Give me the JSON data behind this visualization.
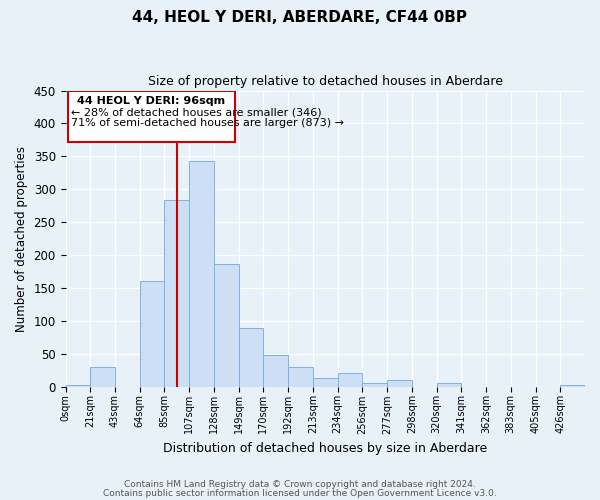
{
  "title": "44, HEOL Y DERI, ABERDARE, CF44 0BP",
  "subtitle": "Size of property relative to detached houses in Aberdare",
  "xlabel": "Distribution of detached houses by size in Aberdare",
  "ylabel": "Number of detached properties",
  "bar_color": "#ccdff5",
  "bar_edge_color": "#7fb3e0",
  "bg_color": "#e8f0f8",
  "grid_color": "#ffffff",
  "fig_bg_color": "#e8f0f8",
  "tick_labels": [
    "0sqm",
    "21sqm",
    "43sqm",
    "64sqm",
    "85sqm",
    "107sqm",
    "128sqm",
    "149sqm",
    "170sqm",
    "192sqm",
    "213sqm",
    "234sqm",
    "256sqm",
    "277sqm",
    "298sqm",
    "320sqm",
    "341sqm",
    "362sqm",
    "383sqm",
    "405sqm",
    "426sqm"
  ],
  "bar_values": [
    3,
    30,
    0,
    160,
    283,
    343,
    186,
    89,
    48,
    30,
    13,
    20,
    5,
    10,
    0,
    5,
    0,
    0,
    0,
    0,
    3
  ],
  "ylim": [
    0,
    450
  ],
  "yticks": [
    0,
    50,
    100,
    150,
    200,
    250,
    300,
    350,
    400,
    450
  ],
  "bin_edges": [
    0,
    21,
    43,
    64,
    85,
    107,
    128,
    149,
    170,
    192,
    213,
    234,
    256,
    277,
    298,
    320,
    341,
    362,
    383,
    405,
    426
  ],
  "marker_val": 96,
  "marker_label": "44 HEOL Y DERI: 96sqm",
  "annotation1": "← 28% of detached houses are smaller (346)",
  "annotation2": "71% of semi-detached houses are larger (873) →",
  "box_color": "#cc0000",
  "footnote1": "Contains HM Land Registry data © Crown copyright and database right 2024.",
  "footnote2": "Contains public sector information licensed under the Open Government Licence v3.0."
}
